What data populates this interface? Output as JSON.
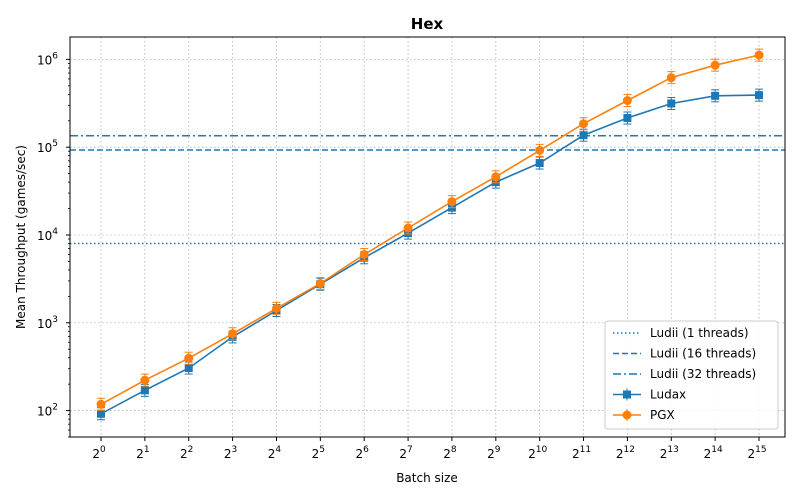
{
  "chart_data": {
    "type": "line",
    "title": "Hex",
    "xlabel": "Batch size",
    "ylabel": "Mean Throughput (games/sec)",
    "y_scale": "log",
    "ylim": [
      50,
      1800000
    ],
    "grid": true,
    "legend_position": "lower-right",
    "x_exponents": [
      0,
      1,
      2,
      3,
      4,
      5,
      6,
      7,
      8,
      9,
      10,
      11,
      12,
      13,
      14,
      15
    ],
    "x_tick_base": "2",
    "series": [
      {
        "name": "Ludax",
        "color": "#1f77b4",
        "marker": "square",
        "values": [
          92,
          170,
          305,
          690,
          1380,
          2750,
          5500,
          10500,
          20500,
          40000,
          66000,
          137000,
          215000,
          315000,
          385000,
          392000
        ]
      },
      {
        "name": "PGX",
        "color": "#ff7f0e",
        "marker": "circle",
        "values": [
          118,
          222,
          395,
          750,
          1460,
          2800,
          6000,
          12000,
          24000,
          46000,
          92000,
          185000,
          340000,
          620000,
          860000,
          1120000
        ]
      }
    ],
    "reference_lines": [
      {
        "name": "Ludii (1 threads)",
        "value": 8000,
        "style": "dotted",
        "color": "#1f77b4"
      },
      {
        "name": "Ludii (16 threads)",
        "value": 93000,
        "style": "dashed",
        "color": "#1f77b4"
      },
      {
        "name": "Ludii (32 threads)",
        "value": 135000,
        "style": "dashdot",
        "color": "#1f77b4"
      }
    ]
  }
}
